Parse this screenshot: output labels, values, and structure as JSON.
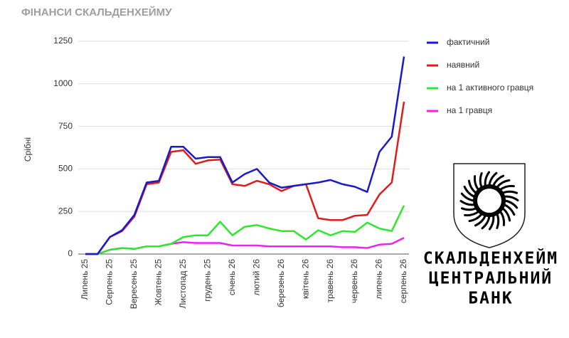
{
  "chart_data": {
    "type": "line",
    "title": "ФІНАНСИ СКАЛЬДЕНХЕЙМУ",
    "y_label": "Срібні",
    "categories": [
      "Липень 25",
      null,
      "Серпень 25",
      null,
      "Вересень 25",
      null,
      "Жовтень 25",
      null,
      "Листопад 25",
      null,
      "грудень 25",
      null,
      "січень 26",
      null,
      "лютий 26",
      null,
      "березень 26",
      null,
      "квітень 26",
      null,
      "травень 26",
      null,
      "червень 26",
      null,
      "липень 26",
      null,
      "серпень 26"
    ],
    "series": [
      {
        "name": "фактичний",
        "color": "#1a1ac8",
        "values": [
          0,
          0,
          100,
          140,
          230,
          420,
          430,
          630,
          630,
          560,
          570,
          570,
          420,
          470,
          500,
          420,
          390,
          400,
          410,
          420,
          435,
          410,
          395,
          365,
          600,
          690,
          1160
        ]
      },
      {
        "name": "наявний",
        "color": "#dd1c1c",
        "values": [
          0,
          0,
          100,
          135,
          220,
          410,
          420,
          600,
          610,
          530,
          550,
          555,
          410,
          400,
          430,
          410,
          370,
          400,
          410,
          210,
          200,
          200,
          225,
          230,
          350,
          420,
          895
        ]
      },
      {
        "name": "на 1 активного гравця",
        "color": "#2ee82e",
        "values": [
          0,
          0,
          25,
          35,
          30,
          45,
          45,
          60,
          100,
          110,
          110,
          190,
          110,
          160,
          170,
          150,
          135,
          135,
          85,
          140,
          110,
          135,
          130,
          185,
          150,
          135,
          285
        ]
      },
      {
        "name": "на 1 гравця",
        "color": "#ee22ee",
        "values": [
          0,
          0,
          25,
          35,
          30,
          45,
          45,
          60,
          70,
          65,
          65,
          65,
          50,
          50,
          50,
          45,
          45,
          45,
          45,
          45,
          45,
          40,
          40,
          35,
          55,
          60,
          95
        ]
      }
    ],
    "ylim": [
      0,
      1250
    ],
    "yticks": [
      0,
      250,
      500,
      750,
      1000,
      1250
    ],
    "grid": true
  },
  "bank_name": [
    "СКАЛЬДЕНХЕЙМ",
    "ЦЕНТРАЛЬНИЙ",
    "БАНК"
  ]
}
